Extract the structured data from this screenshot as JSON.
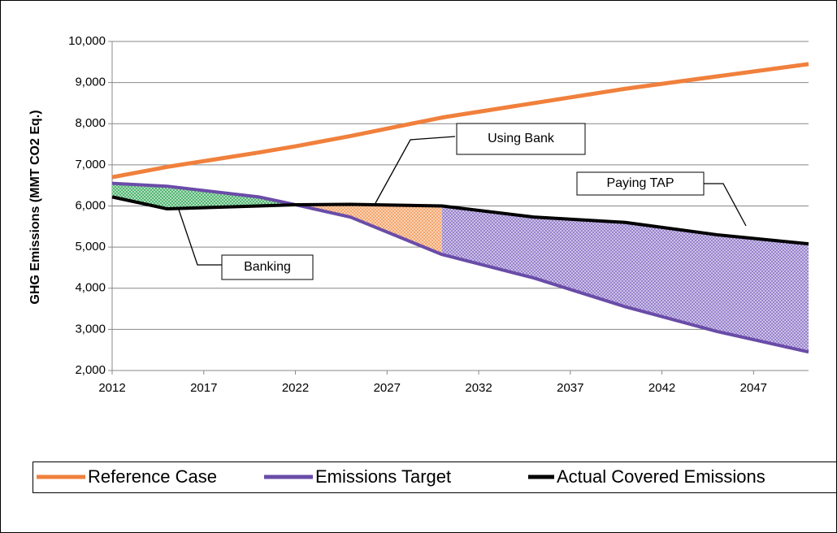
{
  "chart_data": {
    "type": "line",
    "y_label": "GHG Emissions (MMT CO2 Eq.)",
    "x": [
      2012,
      2015,
      2020,
      2022,
      2025,
      2030,
      2035,
      2040,
      2045,
      2050
    ],
    "series": [
      {
        "name": "Reference Case",
        "color": "#f0803c",
        "values": [
          6700,
          6950,
          7300,
          7450,
          7700,
          8150,
          8500,
          8850,
          9150,
          9450
        ]
      },
      {
        "name": "Emissions Target",
        "color": "#6a4ca8",
        "values": [
          6550,
          6480,
          6220,
          6030,
          5730,
          4820,
          4250,
          3550,
          2950,
          2450
        ]
      },
      {
        "name": "Actual Covered Emissions",
        "color": "#000000",
        "values": [
          6220,
          5930,
          6000,
          6030,
          6040,
          6000,
          5730,
          5600,
          5300,
          5080
        ]
      }
    ],
    "annotations": [
      "Using Bank",
      "Paying TAP",
      "Banking"
    ],
    "xlim": [
      2012,
      2050
    ],
    "xticks": [
      2012,
      2017,
      2022,
      2027,
      2032,
      2037,
      2042,
      2047
    ],
    "ylim": [
      2000,
      10000
    ],
    "yticks": [
      {
        "value": 2000,
        "label": "2,000"
      },
      {
        "value": 3000,
        "label": "3,000"
      },
      {
        "value": 4000,
        "label": "4,000"
      },
      {
        "value": 5000,
        "label": "5,000"
      },
      {
        "value": 6000,
        "label": "6,000"
      },
      {
        "value": 7000,
        "label": "7,000"
      },
      {
        "value": 8000,
        "label": "8,000"
      },
      {
        "value": 9000,
        "label": "9,000"
      },
      {
        "value": 10000,
        "label": "10,000"
      }
    ],
    "grid": true,
    "legend": "bottom"
  }
}
